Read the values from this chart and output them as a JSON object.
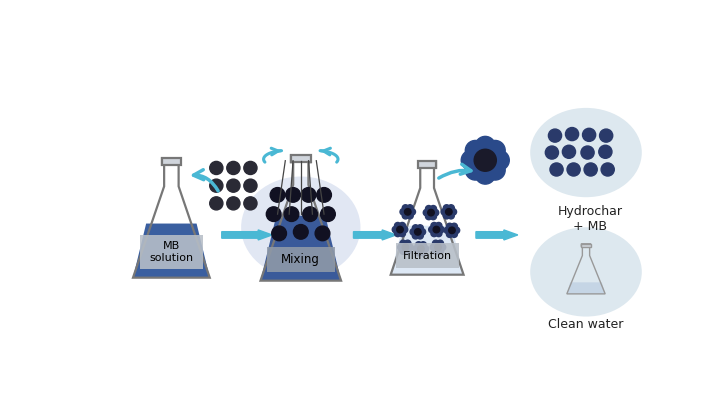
{
  "bg_color": "#ffffff",
  "arrow_color": "#4ab8d4",
  "flask_outline": "#888888",
  "flask_blue_dark": "#3a5fa0",
  "flask_blue_light": "#d8e8f5",
  "label_bg_gray": "#b8bfc8",
  "particle_dark": "#2a2a35",
  "particle_blue": "#2a3a6a",
  "circle_bg": "#dde8ef",
  "flower_dark": "#1a1a2a",
  "flower_blue": "#2a4a8a",
  "labels": {
    "mb": "MB\nsolution",
    "mixing": "Mixing",
    "filtration": "Filtration",
    "hydrochar": "Hydrochar\n+ MB",
    "clean": "Clean water"
  },
  "figsize": [
    7.2,
    4.05
  ],
  "dpi": 100
}
